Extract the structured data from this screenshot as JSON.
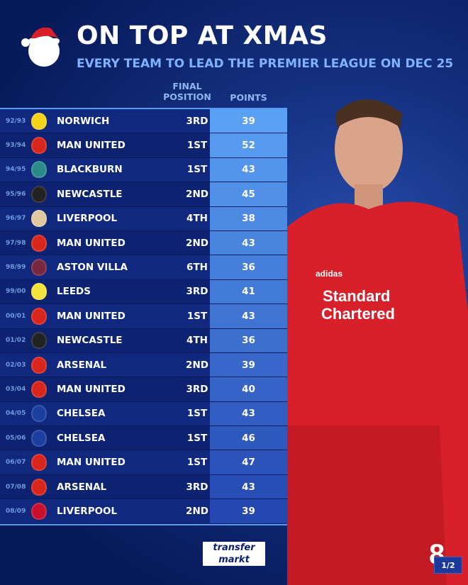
{
  "header": {
    "title": "ON TOP AT XMAS",
    "subtitle": "EVERY TEAM TO LEAD THE PREMIER LEAGUE ON DEC 25"
  },
  "columns": {
    "final_position": "FINAL POSITION",
    "points": "POINTS"
  },
  "rows": [
    {
      "season": "92/93",
      "team": "NORWICH",
      "position": "3RD",
      "points": "39",
      "crest": "#f2d21a"
    },
    {
      "season": "93/94",
      "team": "MAN UNITED",
      "position": "1ST",
      "points": "52",
      "crest": "#d8261c"
    },
    {
      "season": "94/95",
      "team": "BLACKBURN",
      "position": "1ST",
      "points": "43",
      "crest": "#2b8a8a"
    },
    {
      "season": "95/96",
      "team": "NEWCASTLE",
      "position": "2ND",
      "points": "45",
      "crest": "#222222"
    },
    {
      "season": "96/97",
      "team": "LIVERPOOL",
      "position": "4TH",
      "points": "38",
      "crest": "#e0c9a0"
    },
    {
      "season": "97/98",
      "team": "MAN UNITED",
      "position": "2ND",
      "points": "43",
      "crest": "#d8261c"
    },
    {
      "season": "98/99",
      "team": "ASTON VILLA",
      "position": "6TH",
      "points": "36",
      "crest": "#7a2840"
    },
    {
      "season": "99/00",
      "team": "LEEDS",
      "position": "3RD",
      "points": "41",
      "crest": "#f5e23a"
    },
    {
      "season": "00/01",
      "team": "MAN UNITED",
      "position": "1ST",
      "points": "43",
      "crest": "#d8261c"
    },
    {
      "season": "01/02",
      "team": "NEWCASTLE",
      "position": "4TH",
      "points": "36",
      "crest": "#222222"
    },
    {
      "season": "02/03",
      "team": "ARSENAL",
      "position": "2ND",
      "points": "39",
      "crest": "#d8261c"
    },
    {
      "season": "03/04",
      "team": "MAN UNITED",
      "position": "3RD",
      "points": "40",
      "crest": "#d8261c"
    },
    {
      "season": "04/05",
      "team": "CHELSEA",
      "position": "1ST",
      "points": "43",
      "crest": "#1b3fa0"
    },
    {
      "season": "05/06",
      "team": "CHELSEA",
      "position": "1ST",
      "points": "46",
      "crest": "#1b3fa0"
    },
    {
      "season": "06/07",
      "team": "MAN UNITED",
      "position": "1ST",
      "points": "47",
      "crest": "#d8261c"
    },
    {
      "season": "07/08",
      "team": "ARSENAL",
      "position": "3RD",
      "points": "43",
      "crest": "#d8261c"
    },
    {
      "season": "08/09",
      "team": "LIVERPOOL",
      "position": "2ND",
      "points": "39",
      "crest": "#c8102e"
    }
  ],
  "player_shirt": {
    "sponsor_line1": "Standard",
    "sponsor_line2": "Chartered",
    "brand": "adidas",
    "number": "8"
  },
  "footer": {
    "brand_line1": "transfer",
    "brand_line2": "markt",
    "page_indicator": "1/2"
  },
  "colors": {
    "accent": "#7fb2ff",
    "points_top": "#5aa0f5",
    "points_bottom": "#2448b0",
    "shirt": "#d8202a"
  }
}
